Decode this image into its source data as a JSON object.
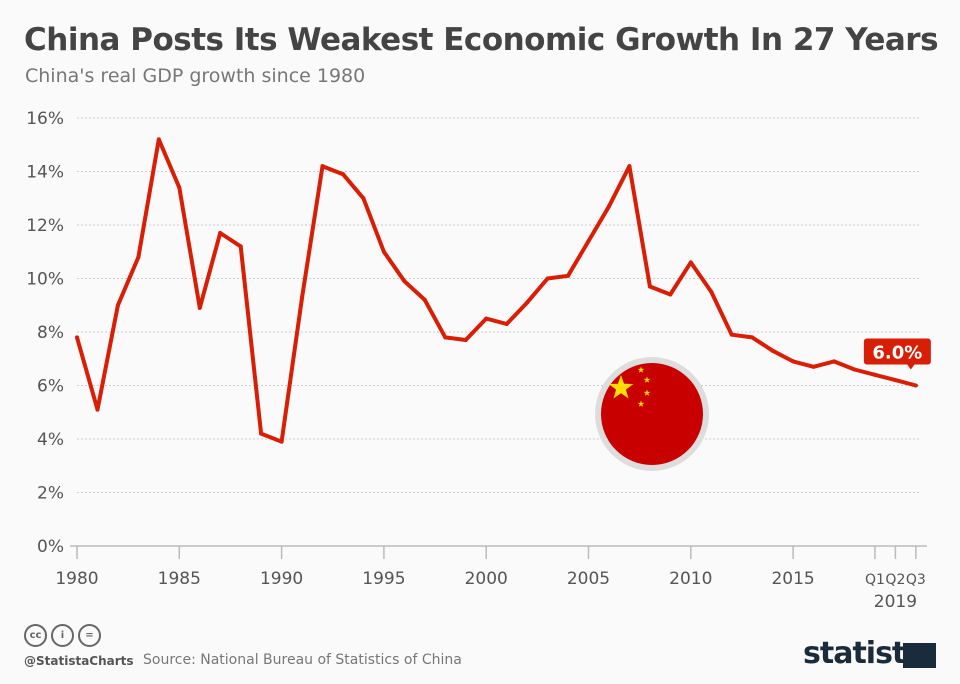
{
  "title": "China Posts Its Weakest Economic Growth In 27 Years",
  "subtitle": "China's real GDP growth since 1980",
  "footer": {
    "handle": "@StatistaCharts",
    "source": "Source: National Bureau of Statistics of China",
    "logo": "statista",
    "license_icons": [
      "cc-icon",
      "by-icon",
      "nd-icon"
    ]
  },
  "colors": {
    "line": "#d81e05",
    "label_bg": "#d81e05",
    "flag_red": "#c80000",
    "flag_star": "#ffde00"
  },
  "chart_data": {
    "type": "line",
    "title": "China Posts Its Weakest Economic Growth In 27 Years",
    "subtitle": "China's real GDP growth since 1980",
    "ylim": [
      0,
      16
    ],
    "yticks": [
      "0%",
      "2%",
      "4%",
      "6%",
      "8%",
      "10%",
      "12%",
      "14%",
      "16%"
    ],
    "ytick_values": [
      0,
      2,
      4,
      6,
      8,
      10,
      12,
      14,
      16
    ],
    "grid": true,
    "x": [
      "1980",
      "1981",
      "1982",
      "1983",
      "1984",
      "1985",
      "1986",
      "1987",
      "1988",
      "1989",
      "1990",
      "1991",
      "1992",
      "1993",
      "1994",
      "1995",
      "1996",
      "1997",
      "1998",
      "1999",
      "2000",
      "2001",
      "2002",
      "2003",
      "2004",
      "2005",
      "2006",
      "2007",
      "2008",
      "2009",
      "2010",
      "2011",
      "2012",
      "2013",
      "2014",
      "2015",
      "2016",
      "2017",
      "2018",
      "Q1 2019",
      "Q2 2019",
      "Q3 2019"
    ],
    "values": [
      7.8,
      5.1,
      9.0,
      10.8,
      15.2,
      13.4,
      8.9,
      11.7,
      11.2,
      4.2,
      3.9,
      9.3,
      14.2,
      13.9,
      13.0,
      11.0,
      9.9,
      9.2,
      7.8,
      7.7,
      8.5,
      8.3,
      9.1,
      10.0,
      10.1,
      11.4,
      12.7,
      14.2,
      9.7,
      9.4,
      10.6,
      9.5,
      7.9,
      7.8,
      7.3,
      6.9,
      6.7,
      6.9,
      6.6,
      6.4,
      6.2,
      6.0
    ],
    "xtick_labels": [
      {
        "label": "1980",
        "index": 0
      },
      {
        "label": "1985",
        "index": 5
      },
      {
        "label": "1990",
        "index": 10
      },
      {
        "label": "1995",
        "index": 15
      },
      {
        "label": "2000",
        "index": 20
      },
      {
        "label": "2005",
        "index": 25
      },
      {
        "label": "2010",
        "index": 30
      },
      {
        "label": "2015",
        "index": 35
      },
      {
        "label": "Q1",
        "index": 39
      },
      {
        "label": "Q2",
        "index": 40
      },
      {
        "label": "Q3",
        "index": 41
      }
    ],
    "xgroup_label": "2019",
    "annotation": "6.0%"
  }
}
